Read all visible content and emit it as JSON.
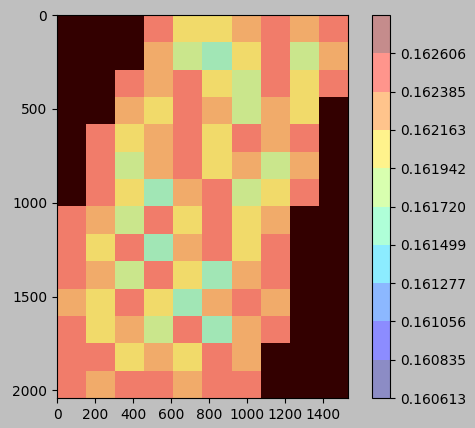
{
  "chart_data": {
    "type": "heatmap",
    "xlim": [
      0,
      1530
    ],
    "xticks": [
      0,
      200,
      400,
      600,
      800,
      1000,
      1200,
      1400
    ],
    "ylim": [
      2040,
      0
    ],
    "yticks": [
      0,
      500,
      1000,
      1500,
      2000
    ],
    "colorbar_range": [
      0.160613,
      0.162828
    ],
    "colorbar_ticks": [
      0.160613,
      0.160835,
      0.161056,
      0.161277,
      0.161499,
      {
        "value": 0.16172,
        "label": "0.161720"
      },
      0.161942,
      0.162163,
      0.162385,
      0.162606
    ],
    "cells": [
      [
        null,
        null,
        null,
        0.1624,
        0.1621,
        0.162,
        0.1623,
        0.1625,
        0.1622,
        0.1626
      ],
      [
        null,
        null,
        null,
        0.1622,
        0.1619,
        0.1617,
        0.1621,
        0.1624,
        0.1618,
        0.1623
      ],
      [
        null,
        null,
        0.1625,
        0.1623,
        0.1624,
        0.162,
        0.1618,
        0.1625,
        0.1621,
        0.1624
      ],
      [
        null,
        null,
        0.1623,
        0.1621,
        0.1626,
        0.1622,
        0.1619,
        0.1623,
        0.162,
        null
      ],
      [
        null,
        0.1626,
        0.162,
        0.1622,
        0.1625,
        0.1621,
        0.1624,
        0.1622,
        0.1625,
        null
      ],
      [
        null,
        0.1624,
        0.1618,
        0.1623,
        0.1626,
        0.162,
        0.1622,
        0.1619,
        0.1623,
        null
      ],
      [
        null,
        0.1625,
        0.1621,
        0.1617,
        0.1622,
        0.1624,
        0.1618,
        0.1621,
        0.1624,
        null
      ],
      [
        0.1626,
        0.1623,
        0.1619,
        0.1624,
        0.1621,
        0.1625,
        0.162,
        0.1623,
        null,
        null
      ],
      [
        0.1624,
        0.162,
        0.1625,
        0.1616,
        0.1622,
        0.1626,
        0.1621,
        0.1624,
        null,
        null
      ],
      [
        0.1625,
        0.1622,
        0.1618,
        0.1624,
        0.162,
        0.1617,
        0.1623,
        0.1625,
        null,
        null
      ],
      [
        0.1623,
        0.162,
        0.1626,
        0.1621,
        0.1615,
        0.1622,
        0.1624,
        0.1622,
        null,
        null
      ],
      [
        0.1626,
        0.1621,
        0.1623,
        0.1619,
        0.1624,
        0.1617,
        0.1622,
        0.1624,
        null,
        null
      ],
      [
        0.1624,
        0.1625,
        0.162,
        0.1623,
        0.1621,
        0.1625,
        0.1623,
        null,
        null,
        null
      ],
      [
        0.1625,
        0.1623,
        0.1624,
        0.1626,
        0.1622,
        0.1624,
        0.1625,
        null,
        null,
        null
      ]
    ]
  }
}
